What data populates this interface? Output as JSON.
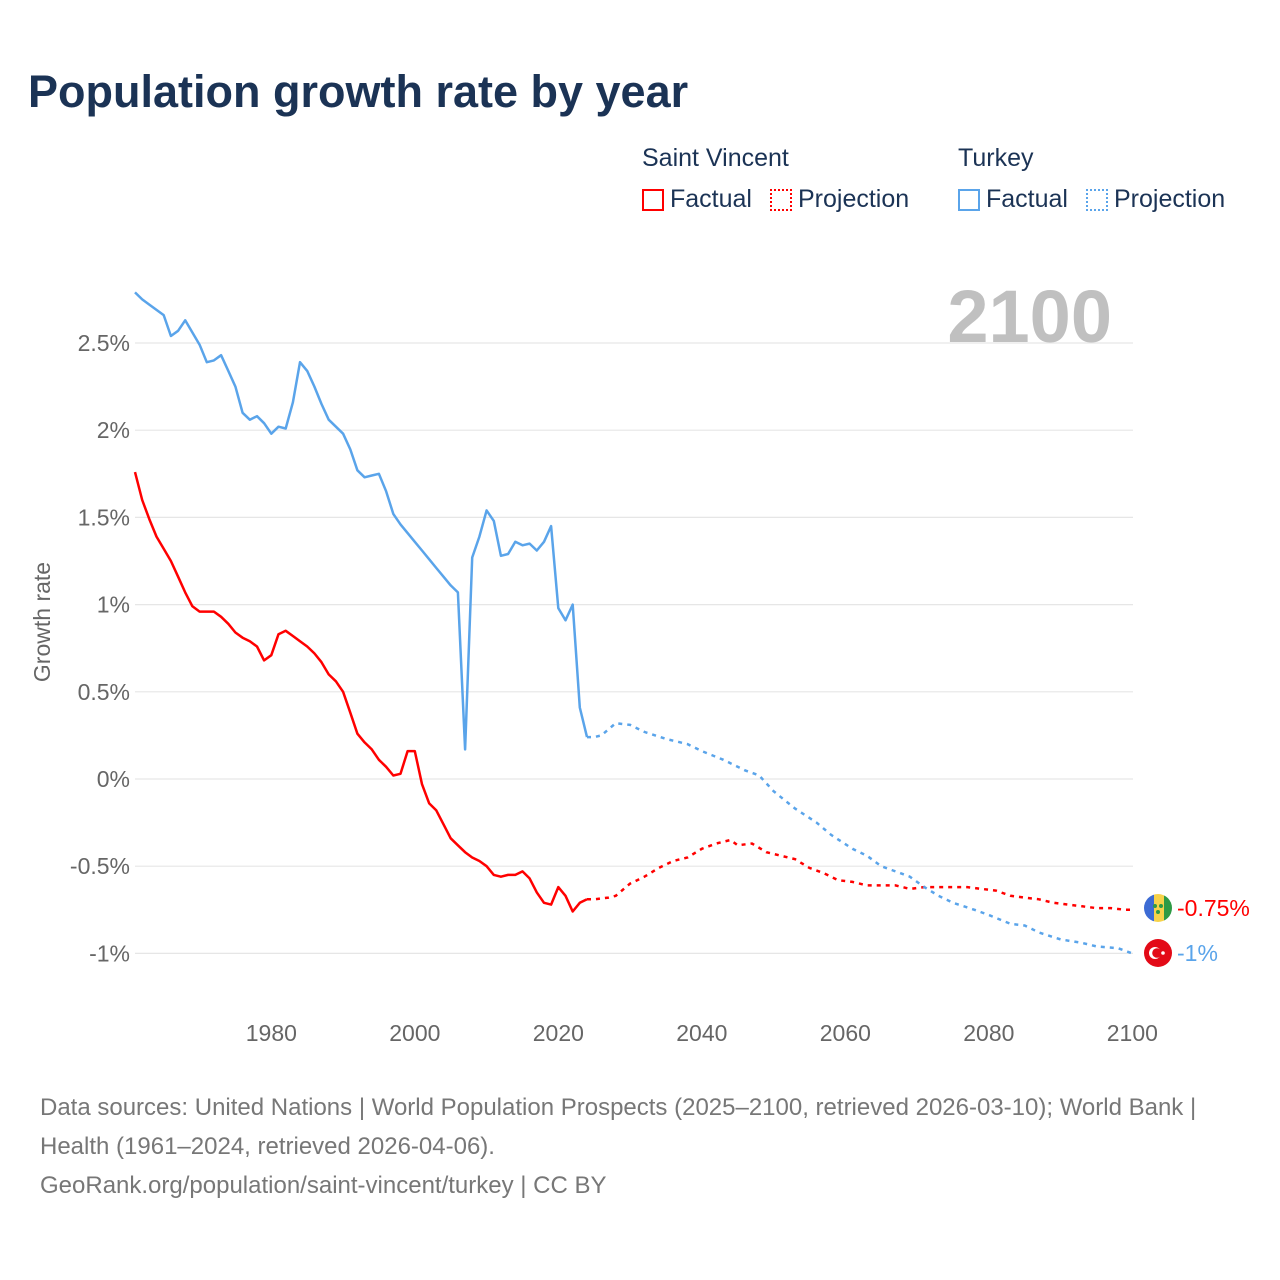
{
  "title": "Population growth rate by year",
  "legend": {
    "groups": [
      {
        "name": "Saint Vincent",
        "color": "#ff0000",
        "factual": "Factual",
        "projection": "Projection"
      },
      {
        "name": "Turkey",
        "color": "#5aa4ea",
        "factual": "Factual",
        "projection": "Projection"
      }
    ]
  },
  "year_label": "2100",
  "end_labels": {
    "saint_vincent": "-0.75%",
    "turkey": "-1%"
  },
  "footer": {
    "sources": "Data sources: United Nations | World Population Prospects (2025–2100, retrieved 2026-03-10); World Bank | Health (1961–2024, retrieved 2026-04-06).",
    "link": "GeoRank.org/population/saint-vincent/turkey | CC BY"
  },
  "chart_data": {
    "type": "line",
    "title": "Population growth rate by year",
    "xlabel": "",
    "ylabel": "Growth rate",
    "xlim": [
      1961,
      2100
    ],
    "ylim": [
      -1.2,
      2.85
    ],
    "xticks": [
      1980,
      2000,
      2020,
      2040,
      2060,
      2080,
      2100
    ],
    "xtick_labels": [
      "1980",
      "2000",
      "2020",
      "2040",
      "2060",
      "2080",
      "2100"
    ],
    "yticks": [
      -1,
      -0.5,
      0,
      0.5,
      1,
      1.5,
      2,
      2.5
    ],
    "ytick_labels": [
      "-1%",
      "-0.5%",
      "0%",
      "0.5%",
      "1%",
      "1.5%",
      "2%",
      "2.5%"
    ],
    "grid": true,
    "series": [
      {
        "name": "Saint Vincent",
        "color": "#ff0000",
        "factual": {
          "x": [
            1961,
            1962,
            1963,
            1964,
            1965,
            1966,
            1967,
            1968,
            1969,
            1970,
            1971,
            1972,
            1973,
            1974,
            1975,
            1976,
            1977,
            1978,
            1979,
            1980,
            1981,
            1982,
            1983,
            1984,
            1985,
            1986,
            1987,
            1988,
            1989,
            1990,
            1991,
            1992,
            1993,
            1994,
            1995,
            1996,
            1997,
            1998,
            1999,
            2000,
            2001,
            2002,
            2003,
            2004,
            2005,
            2006,
            2007,
            2008,
            2009,
            2010,
            2011,
            2012,
            2013,
            2014,
            2015,
            2016,
            2017,
            2018,
            2019,
            2020,
            2021,
            2022,
            2023,
            2024
          ],
          "y": [
            1.76,
            1.6,
            1.49,
            1.39,
            1.32,
            1.25,
            1.16,
            1.07,
            0.99,
            0.96,
            0.96,
            0.96,
            0.93,
            0.89,
            0.84,
            0.81,
            0.79,
            0.76,
            0.68,
            0.71,
            0.83,
            0.85,
            0.82,
            0.79,
            0.76,
            0.72,
            0.67,
            0.6,
            0.56,
            0.5,
            0.38,
            0.26,
            0.21,
            0.17,
            0.11,
            0.07,
            0.02,
            0.03,
            0.16,
            0.16,
            -0.03,
            -0.14,
            -0.18,
            -0.26,
            -0.34,
            -0.38,
            -0.42,
            -0.45,
            -0.47,
            -0.5,
            -0.55,
            -0.56,
            -0.55,
            -0.55,
            -0.53,
            -0.57,
            -0.65,
            -0.71,
            -0.72,
            -0.62,
            -0.67,
            -0.76,
            -0.71,
            -0.69
          ]
        },
        "projection": {
          "x": [
            2024,
            2025,
            2027,
            2028,
            2030,
            2032,
            2034,
            2036,
            2038,
            2040,
            2042,
            2044,
            2045,
            2047,
            2049,
            2051,
            2053,
            2055,
            2057,
            2059,
            2061,
            2063,
            2065,
            2067,
            2069,
            2071,
            2073,
            2075,
            2077,
            2079,
            2081,
            2083,
            2085,
            2087,
            2089,
            2091,
            2093,
            2095,
            2097,
            2099,
            2100
          ],
          "y": [
            -0.69,
            -0.69,
            -0.68,
            -0.67,
            -0.6,
            -0.56,
            -0.51,
            -0.47,
            -0.45,
            -0.4,
            -0.37,
            -0.35,
            -0.38,
            -0.37,
            -0.42,
            -0.44,
            -0.46,
            -0.51,
            -0.54,
            -0.58,
            -0.59,
            -0.61,
            -0.61,
            -0.61,
            -0.63,
            -0.62,
            -0.62,
            -0.62,
            -0.62,
            -0.63,
            -0.64,
            -0.67,
            -0.68,
            -0.69,
            -0.71,
            -0.72,
            -0.73,
            -0.74,
            -0.74,
            -0.75,
            -0.75
          ]
        }
      },
      {
        "name": "Turkey",
        "color": "#5aa4ea",
        "factual": {
          "x": [
            1961,
            1962,
            1963,
            1964,
            1965,
            1966,
            1967,
            1968,
            1969,
            1970,
            1971,
            1972,
            1973,
            1974,
            1975,
            1976,
            1977,
            1978,
            1979,
            1980,
            1981,
            1982,
            1983,
            1984,
            1985,
            1986,
            1987,
            1988,
            1989,
            1990,
            1991,
            1992,
            1993,
            1994,
            1995,
            1996,
            1997,
            1998,
            1999,
            2000,
            2001,
            2002,
            2003,
            2004,
            2005,
            2006,
            2007,
            2008,
            2009,
            2010,
            2011,
            2012,
            2013,
            2014,
            2015,
            2016,
            2017,
            2018,
            2019,
            2020,
            2021,
            2022,
            2023,
            2024
          ],
          "y": [
            2.79,
            2.75,
            2.72,
            2.69,
            2.66,
            2.54,
            2.57,
            2.63,
            2.56,
            2.49,
            2.39,
            2.4,
            2.43,
            2.34,
            2.25,
            2.1,
            2.06,
            2.08,
            2.04,
            1.98,
            2.02,
            2.01,
            2.16,
            2.39,
            2.34,
            2.25,
            2.15,
            2.06,
            2.02,
            1.98,
            1.89,
            1.77,
            1.73,
            1.74,
            1.75,
            1.65,
            1.52,
            1.46,
            1.41,
            1.36,
            1.31,
            1.26,
            1.21,
            1.16,
            1.11,
            1.07,
            0.17,
            1.27,
            1.39,
            1.54,
            1.48,
            1.28,
            1.29,
            1.36,
            1.34,
            1.35,
            1.31,
            1.36,
            1.45,
            0.98,
            0.91,
            1.0,
            0.41,
            0.24
          ]
        },
        "projection": {
          "x": [
            2024,
            2025,
            2026,
            2028,
            2030,
            2032,
            2035,
            2038,
            2040,
            2043,
            2046,
            2048,
            2050,
            2053,
            2056,
            2058,
            2061,
            2063,
            2065,
            2067,
            2069,
            2071,
            2073,
            2075,
            2078,
            2080,
            2083,
            2085,
            2087,
            2090,
            2093,
            2095,
            2098,
            2100
          ],
          "y": [
            0.24,
            0.24,
            0.25,
            0.32,
            0.31,
            0.27,
            0.23,
            0.2,
            0.16,
            0.11,
            0.05,
            0.02,
            -0.07,
            -0.17,
            -0.25,
            -0.32,
            -0.4,
            -0.44,
            -0.5,
            -0.53,
            -0.56,
            -0.62,
            -0.67,
            -0.71,
            -0.75,
            -0.78,
            -0.83,
            -0.84,
            -0.88,
            -0.92,
            -0.94,
            -0.96,
            -0.97,
            -1.0
          ]
        }
      }
    ]
  }
}
